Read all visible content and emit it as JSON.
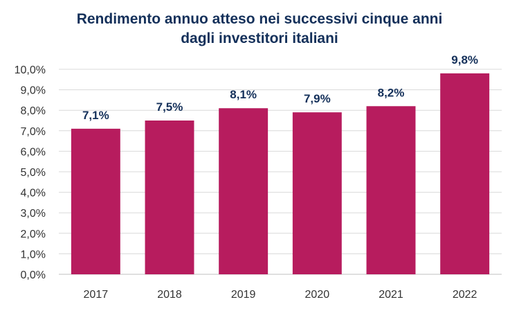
{
  "chart_data": {
    "type": "bar",
    "title_lines": [
      "Rendimento annuo atteso nei successivi cinque anni",
      "dagli investitori italiani"
    ],
    "categories": [
      "2017",
      "2018",
      "2019",
      "2020",
      "2021",
      "2022"
    ],
    "values": [
      7.1,
      7.5,
      8.1,
      7.9,
      8.2,
      9.8
    ],
    "data_labels": [
      "7,1%",
      "7,5%",
      "8,1%",
      "7,9%",
      "8,2%",
      "9,8%"
    ],
    "y_ticks": [
      0,
      1,
      2,
      3,
      4,
      5,
      6,
      7,
      8,
      9,
      10
    ],
    "y_tick_labels": [
      "0,0%",
      "1,0%",
      "2,0%",
      "3,0%",
      "4,0%",
      "5,0%",
      "6,0%",
      "7,0%",
      "8,0%",
      "9,0%",
      "10,0%"
    ],
    "ylim": [
      0,
      10
    ],
    "xlabel": "",
    "ylabel": "",
    "grid": true,
    "legend": "none",
    "bar_color": "#b71c5e",
    "title_color": "#14305a"
  }
}
